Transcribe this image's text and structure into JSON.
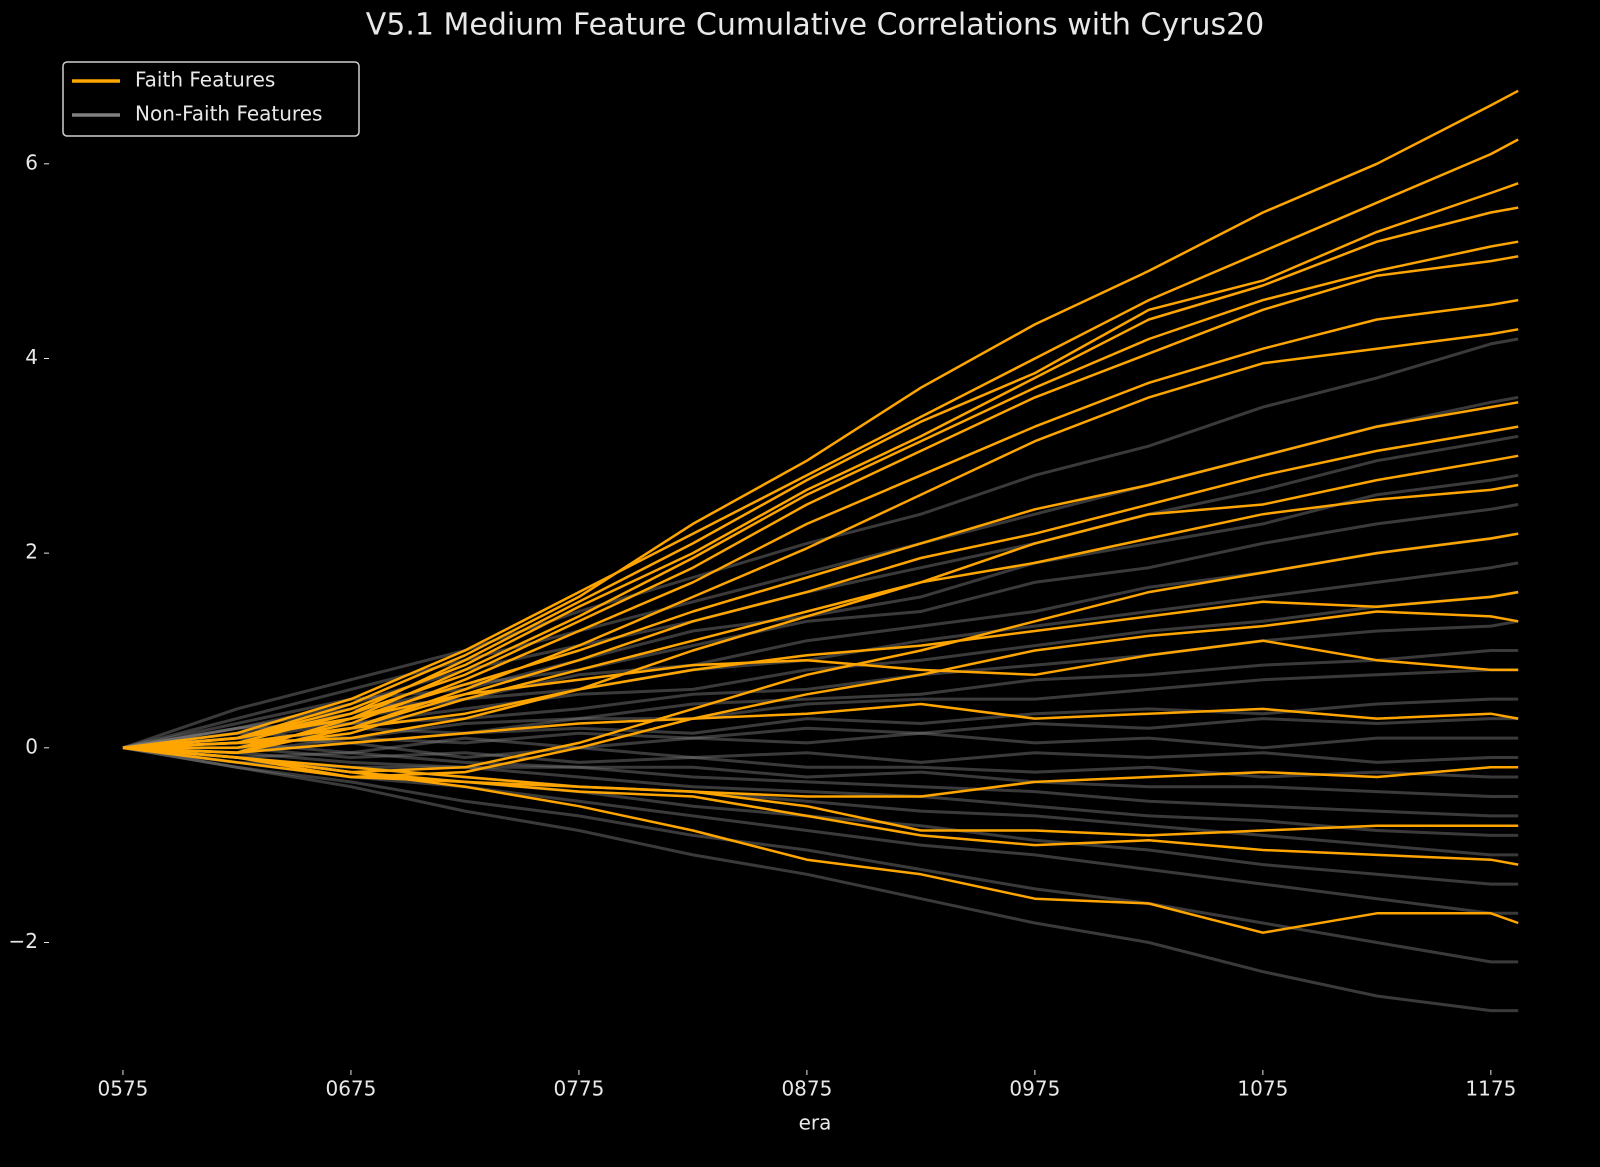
{
  "chart_data": {
    "type": "line",
    "title": "V5.1 Medium Feature Cumulative Correlations with Cyrus20",
    "xlabel": "era",
    "x": [
      575,
      625,
      675,
      725,
      775,
      825,
      875,
      925,
      975,
      1025,
      1075,
      1125,
      1175,
      1187
    ],
    "xlim": [
      543,
      1197
    ],
    "xticks": [
      {
        "value": 575,
        "label": "0575"
      },
      {
        "value": 675,
        "label": "0675"
      },
      {
        "value": 775,
        "label": "0775"
      },
      {
        "value": 875,
        "label": "0875"
      },
      {
        "value": 975,
        "label": "0975"
      },
      {
        "value": 1075,
        "label": "1075"
      },
      {
        "value": 1175,
        "label": "1175"
      }
    ],
    "ylim": [
      -3.3,
      7.2
    ],
    "yticks": [
      {
        "value": -2,
        "label": "−2"
      },
      0,
      2,
      4,
      6
    ],
    "legend": "upper left",
    "series": [
      {
        "name": "Faith Features",
        "color": "#ffa500",
        "lines": [
          [
            0,
            0.1,
            0.45,
            0.95,
            1.55,
            2.3,
            2.95,
            3.7,
            4.35,
            4.9,
            5.5,
            6.0,
            6.6,
            6.75
          ],
          [
            0,
            0.15,
            0.5,
            1.0,
            1.6,
            2.2,
            2.8,
            3.4,
            4.0,
            4.6,
            5.1,
            5.6,
            6.1,
            6.25
          ],
          [
            0,
            0.05,
            0.35,
            0.9,
            1.5,
            2.1,
            2.75,
            3.35,
            3.85,
            4.5,
            4.8,
            5.3,
            5.7,
            5.8
          ],
          [
            0,
            0.1,
            0.4,
            0.85,
            1.45,
            2.0,
            2.65,
            3.2,
            3.8,
            4.4,
            4.75,
            5.2,
            5.5,
            5.55
          ],
          [
            0,
            -0.05,
            0.3,
            0.8,
            1.35,
            1.95,
            2.6,
            3.15,
            3.7,
            4.2,
            4.6,
            4.9,
            5.15,
            5.2
          ],
          [
            0,
            0.1,
            0.35,
            0.75,
            1.3,
            1.85,
            2.5,
            3.05,
            3.6,
            4.05,
            4.5,
            4.85,
            5.0,
            5.05
          ],
          [
            0,
            0.0,
            0.25,
            0.7,
            1.2,
            1.7,
            2.3,
            2.8,
            3.3,
            3.75,
            4.1,
            4.4,
            4.55,
            4.6
          ],
          [
            0,
            0.05,
            0.2,
            0.6,
            1.05,
            1.55,
            2.05,
            2.6,
            3.15,
            3.6,
            3.95,
            4.1,
            4.25,
            4.3
          ],
          [
            0,
            0.1,
            0.3,
            0.65,
            1.0,
            1.4,
            1.75,
            2.1,
            2.45,
            2.7,
            3.0,
            3.3,
            3.5,
            3.55
          ],
          [
            0,
            -0.05,
            0.2,
            0.55,
            0.9,
            1.3,
            1.6,
            1.95,
            2.2,
            2.5,
            2.8,
            3.05,
            3.25,
            3.3
          ],
          [
            0,
            0.05,
            0.1,
            0.3,
            0.6,
            1.0,
            1.35,
            1.7,
            2.1,
            2.4,
            2.5,
            2.75,
            2.95,
            3.0
          ],
          [
            0,
            0.0,
            0.15,
            0.5,
            0.8,
            1.1,
            1.4,
            1.7,
            1.9,
            2.15,
            2.4,
            2.55,
            2.65,
            2.7
          ],
          [
            0,
            -0.1,
            -0.25,
            -0.2,
            0.05,
            0.4,
            0.75,
            1.0,
            1.3,
            1.6,
            1.8,
            2.0,
            2.15,
            2.2
          ],
          [
            0,
            0.05,
            0.2,
            0.35,
            0.6,
            0.8,
            0.95,
            1.05,
            1.2,
            1.35,
            1.5,
            1.45,
            1.55,
            1.6
          ],
          [
            0,
            -0.1,
            -0.3,
            -0.25,
            0.0,
            0.3,
            0.55,
            0.75,
            1.0,
            1.15,
            1.25,
            1.4,
            1.35,
            1.3
          ],
          [
            0,
            0.1,
            0.3,
            0.55,
            0.7,
            0.85,
            0.9,
            0.8,
            0.75,
            0.95,
            1.1,
            0.9,
            0.8,
            0.8
          ],
          [
            0,
            -0.05,
            0.05,
            0.15,
            0.25,
            0.3,
            0.35,
            0.45,
            0.3,
            0.35,
            0.4,
            0.3,
            0.35,
            0.3
          ],
          [
            0,
            -0.1,
            -0.2,
            -0.3,
            -0.4,
            -0.45,
            -0.5,
            -0.5,
            -0.35,
            -0.3,
            -0.25,
            -0.3,
            -0.2,
            -0.2
          ],
          [
            0,
            -0.15,
            -0.3,
            -0.35,
            -0.4,
            -0.45,
            -0.6,
            -0.85,
            -0.85,
            -0.9,
            -0.85,
            -0.8,
            -0.8,
            -0.8
          ],
          [
            0,
            -0.1,
            -0.25,
            -0.35,
            -0.45,
            -0.5,
            -0.7,
            -0.9,
            -1.0,
            -0.95,
            -1.05,
            -1.1,
            -1.15,
            -1.2
          ],
          [
            0,
            -0.1,
            -0.25,
            -0.4,
            -0.6,
            -0.85,
            -1.15,
            -1.3,
            -1.55,
            -1.6,
            -1.9,
            -1.7,
            -1.7,
            -1.8
          ]
        ]
      },
      {
        "name": "Non-Faith Features",
        "color": "#808080",
        "lines": [
          [
            0,
            0.4,
            0.7,
            1.0,
            1.4,
            1.75,
            2.1,
            2.4,
            2.8,
            3.1,
            3.5,
            3.8,
            4.15,
            4.2
          ],
          [
            0,
            0.3,
            0.6,
            0.9,
            1.2,
            1.5,
            1.8,
            2.1,
            2.4,
            2.7,
            3.0,
            3.3,
            3.55,
            3.6
          ],
          [
            0,
            0.2,
            0.45,
            0.8,
            1.05,
            1.3,
            1.6,
            1.85,
            2.1,
            2.4,
            2.65,
            2.95,
            3.15,
            3.2
          ],
          [
            0,
            0.25,
            0.5,
            0.6,
            0.9,
            1.2,
            1.35,
            1.55,
            1.9,
            2.1,
            2.3,
            2.6,
            2.75,
            2.8
          ],
          [
            0,
            0.15,
            0.35,
            0.65,
            0.8,
            1.05,
            1.3,
            1.4,
            1.7,
            1.85,
            2.1,
            2.3,
            2.45,
            2.5
          ],
          [
            0,
            0.2,
            0.4,
            0.5,
            0.75,
            0.85,
            1.1,
            1.25,
            1.4,
            1.65,
            1.8,
            2.0,
            2.15,
            2.2
          ],
          [
            0,
            0.1,
            0.3,
            0.5,
            0.6,
            0.8,
            0.9,
            1.1,
            1.25,
            1.4,
            1.55,
            1.7,
            1.85,
            1.9
          ],
          [
            0,
            0.2,
            0.25,
            0.4,
            0.55,
            0.6,
            0.8,
            0.9,
            1.05,
            1.2,
            1.3,
            1.45,
            1.55,
            1.6
          ],
          [
            0,
            0.1,
            0.25,
            0.3,
            0.4,
            0.55,
            0.6,
            0.75,
            0.85,
            0.95,
            1.1,
            1.2,
            1.25,
            1.3
          ],
          [
            0,
            0.15,
            0.1,
            0.25,
            0.3,
            0.45,
            0.5,
            0.55,
            0.7,
            0.75,
            0.85,
            0.9,
            1.0,
            1.0
          ],
          [
            0,
            0.05,
            0.2,
            0.15,
            0.3,
            0.3,
            0.45,
            0.5,
            0.5,
            0.6,
            0.7,
            0.75,
            0.8,
            0.8
          ],
          [
            0,
            0.1,
            0.05,
            0.15,
            0.2,
            0.15,
            0.3,
            0.25,
            0.35,
            0.4,
            0.35,
            0.45,
            0.5,
            0.5
          ],
          [
            0,
            -0.05,
            0.1,
            0.05,
            0.15,
            0.1,
            0.2,
            0.15,
            0.25,
            0.2,
            0.3,
            0.25,
            0.3,
            0.3
          ],
          [
            0,
            0.05,
            -0.05,
            0.1,
            0.0,
            0.1,
            0.05,
            0.15,
            0.05,
            0.1,
            0.0,
            0.1,
            0.1,
            0.1
          ],
          [
            0,
            -0.05,
            0.05,
            -0.1,
            0.0,
            -0.1,
            -0.05,
            -0.15,
            -0.05,
            -0.1,
            -0.05,
            -0.15,
            -0.1,
            -0.1
          ],
          [
            0,
            0.0,
            -0.1,
            -0.05,
            -0.15,
            -0.1,
            -0.2,
            -0.2,
            -0.25,
            -0.2,
            -0.3,
            -0.25,
            -0.3,
            -0.3
          ],
          [
            0,
            -0.1,
            -0.05,
            -0.15,
            -0.2,
            -0.2,
            -0.3,
            -0.25,
            -0.35,
            -0.4,
            -0.4,
            -0.45,
            -0.5,
            -0.5
          ],
          [
            0,
            -0.05,
            -0.15,
            -0.2,
            -0.2,
            -0.3,
            -0.35,
            -0.4,
            -0.45,
            -0.55,
            -0.6,
            -0.65,
            -0.7,
            -0.7
          ],
          [
            0,
            -0.1,
            -0.2,
            -0.2,
            -0.3,
            -0.4,
            -0.45,
            -0.5,
            -0.6,
            -0.7,
            -0.75,
            -0.85,
            -0.9,
            -0.9
          ],
          [
            0,
            -0.15,
            -0.2,
            -0.3,
            -0.4,
            -0.45,
            -0.55,
            -0.65,
            -0.7,
            -0.8,
            -0.9,
            -1.0,
            -1.1,
            -1.1
          ],
          [
            0,
            -0.1,
            -0.25,
            -0.35,
            -0.45,
            -0.6,
            -0.7,
            -0.8,
            -0.95,
            -1.05,
            -1.2,
            -1.3,
            -1.4,
            -1.4
          ],
          [
            0,
            -0.15,
            -0.3,
            -0.4,
            -0.55,
            -0.7,
            -0.85,
            -1.0,
            -1.1,
            -1.25,
            -1.4,
            -1.55,
            -1.7,
            -1.7
          ],
          [
            0,
            -0.2,
            -0.35,
            -0.55,
            -0.7,
            -0.9,
            -1.05,
            -1.25,
            -1.45,
            -1.6,
            -1.8,
            -2.0,
            -2.2,
            -2.2
          ],
          [
            0,
            -0.2,
            -0.4,
            -0.65,
            -0.85,
            -1.1,
            -1.3,
            -1.55,
            -1.8,
            -2.0,
            -2.3,
            -2.55,
            -2.7,
            -2.7
          ]
        ]
      }
    ]
  }
}
